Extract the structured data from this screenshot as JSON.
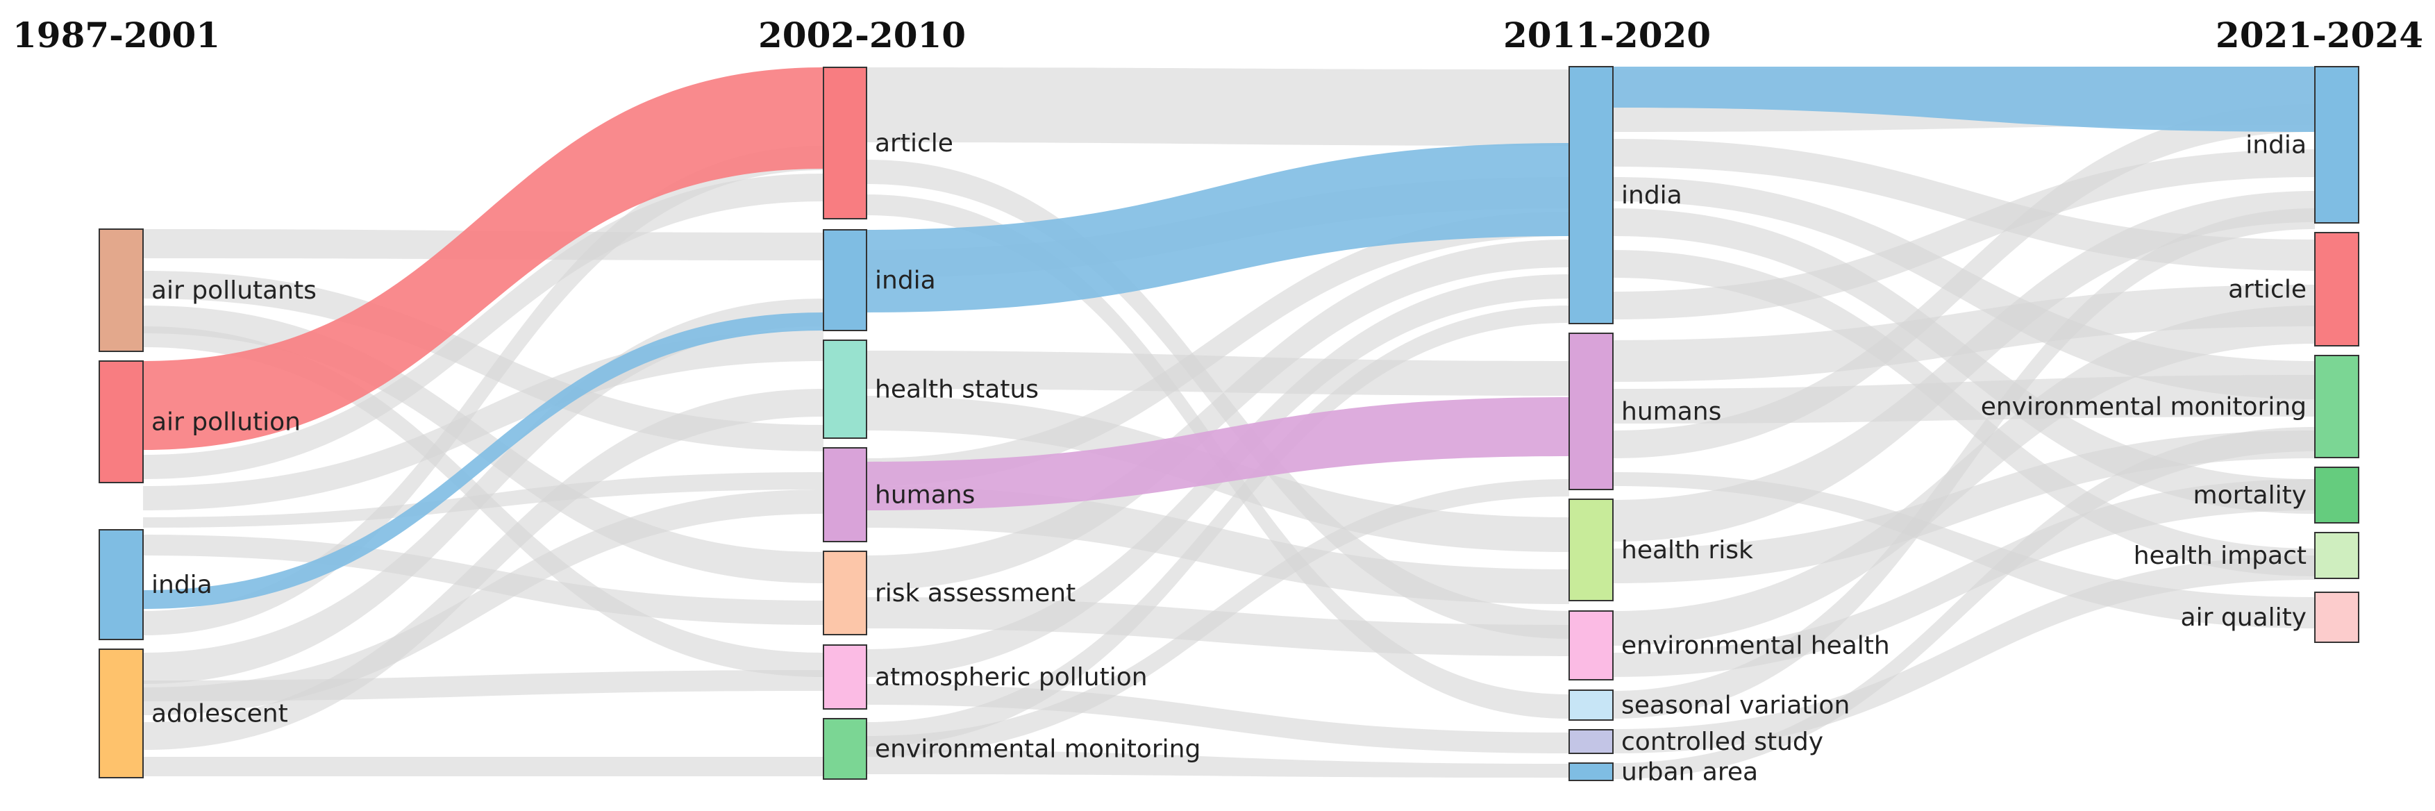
{
  "periods": [
    "1987-2001",
    "2002-2010",
    "2011-2020",
    "2021-2024"
  ],
  "colors": {
    "red": "#f87d81",
    "blue": "#7fbde3",
    "purple": "#d9a3d9",
    "grey_link": "#d5d5d5",
    "salmon": "#e3a88c",
    "orange": "#fec26c",
    "mint": "#98e2cf",
    "peach": "#fcc6a9",
    "pink": "#fbbbe4",
    "green": "#7bd694",
    "lightgreen": "#c8eb9a",
    "lightblue": "#c7e5f6",
    "lavender": "#c3c5e6",
    "darkgreen": "#65cc7e",
    "palegreen": "#cfeebf",
    "palepink": "#fccccc"
  },
  "nodes": [
    {
      "id": "p1_air_pollutants",
      "label": "air pollutants",
      "period": 0,
      "color": "salmon"
    },
    {
      "id": "p1_air_pollution",
      "label": "air pollution",
      "period": 0,
      "color": "red"
    },
    {
      "id": "p1_india",
      "label": "india",
      "period": 0,
      "color": "blue"
    },
    {
      "id": "p1_adolescent",
      "label": "adolescent",
      "period": 0,
      "color": "orange"
    },
    {
      "id": "p2_article",
      "label": "article",
      "period": 1,
      "color": "red"
    },
    {
      "id": "p2_india",
      "label": "india",
      "period": 1,
      "color": "blue"
    },
    {
      "id": "p2_health_status",
      "label": "health status",
      "period": 1,
      "color": "mint"
    },
    {
      "id": "p2_humans",
      "label": "humans",
      "period": 1,
      "color": "purple"
    },
    {
      "id": "p2_risk_assessment",
      "label": "risk assessment",
      "period": 1,
      "color": "peach"
    },
    {
      "id": "p2_atmospheric_pollution",
      "label": "atmospheric pollution",
      "period": 1,
      "color": "pink"
    },
    {
      "id": "p2_environmental_monitoring",
      "label": "environmental monitoring",
      "period": 1,
      "color": "green"
    },
    {
      "id": "p3_india",
      "label": "india",
      "period": 2,
      "color": "blue"
    },
    {
      "id": "p3_humans",
      "label": "humans",
      "period": 2,
      "color": "purple"
    },
    {
      "id": "p3_health_risk",
      "label": "health risk",
      "period": 2,
      "color": "lightgreen"
    },
    {
      "id": "p3_environmental_health",
      "label": "environmental health",
      "period": 2,
      "color": "pink"
    },
    {
      "id": "p3_seasonal_variation",
      "label": "seasonal variation",
      "period": 2,
      "color": "lightblue"
    },
    {
      "id": "p3_controlled_study",
      "label": "controlled study",
      "period": 2,
      "color": "lavender"
    },
    {
      "id": "p3_urban_area",
      "label": "urban area",
      "period": 2,
      "color": "blue"
    },
    {
      "id": "p4_india",
      "label": "india",
      "period": 3,
      "color": "blue"
    },
    {
      "id": "p4_article",
      "label": "article",
      "period": 3,
      "color": "red"
    },
    {
      "id": "p4_environmental_monitoring",
      "label": "environmental monitoring",
      "period": 3,
      "color": "green"
    },
    {
      "id": "p4_mortality",
      "label": "mortality",
      "period": 3,
      "color": "darkgreen"
    },
    {
      "id": "p4_health_impact",
      "label": "health impact",
      "period": 3,
      "color": "palegreen"
    },
    {
      "id": "p4_air_quality",
      "label": "air quality",
      "period": 3,
      "color": "palepink"
    }
  ],
  "flows": [
    {
      "source": "p1_air_pollution",
      "target": "p2_article",
      "color": "red"
    },
    {
      "source": "p1_india",
      "target": "p2_india",
      "color": "blue"
    },
    {
      "source": "p2_india",
      "target": "p3_india",
      "color": "blue"
    },
    {
      "source": "p2_humans",
      "target": "p3_humans",
      "color": "purple"
    },
    {
      "source": "p3_india",
      "target": "p4_india",
      "color": "blue"
    }
  ]
}
